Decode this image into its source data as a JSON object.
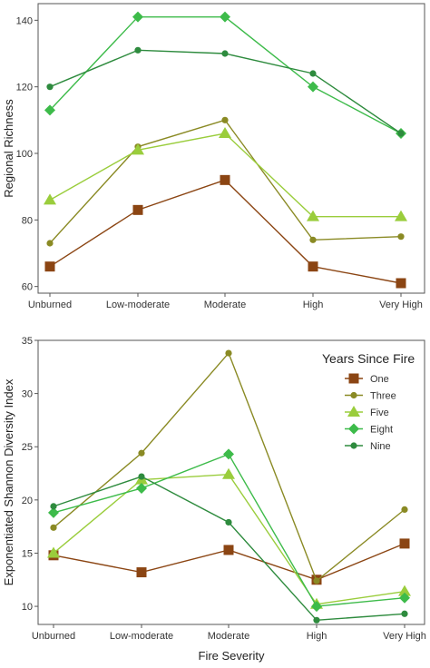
{
  "chart_data": [
    {
      "type": "line",
      "categories": [
        "Unburned",
        "Low-moderate",
        "Moderate",
        "High",
        "Very High"
      ],
      "ylabel": "Regional Richness",
      "xlabel": "",
      "ylim": [
        58,
        145
      ],
      "yticks": [
        60,
        80,
        100,
        120,
        140
      ],
      "grid": false,
      "series": [
        {
          "name": "One",
          "marker": "square",
          "color": "#8B4513",
          "values": [
            66,
            83,
            92,
            66,
            61
          ]
        },
        {
          "name": "Three",
          "marker": "circle",
          "color": "#8A8A24",
          "values": [
            73,
            102,
            110,
            74,
            75
          ]
        },
        {
          "name": "Five",
          "marker": "triangle",
          "color": "#9ACD3C",
          "values": [
            86,
            101,
            106,
            81,
            81
          ]
        },
        {
          "name": "Eight",
          "marker": "diamond",
          "color": "#3DBB4A",
          "values": [
            113,
            141,
            141,
            120,
            106
          ]
        },
        {
          "name": "Nine",
          "marker": "circle",
          "color": "#2E8B3E",
          "values": [
            120,
            131,
            130,
            124,
            106
          ]
        }
      ]
    },
    {
      "type": "line",
      "categories": [
        "Unburned",
        "Low-moderate",
        "Moderate",
        "High",
        "Very High"
      ],
      "ylabel": "Exponentiated Shannon Diversity Index",
      "xlabel": "Fire Severity",
      "ylim": [
        8.3,
        35
      ],
      "yticks": [
        10,
        15,
        20,
        25,
        30,
        35
      ],
      "grid": false,
      "legend": {
        "title": "Years Since Fire",
        "position": "top-right"
      },
      "series": [
        {
          "name": "One",
          "marker": "square",
          "color": "#8B4513",
          "values": [
            14.8,
            13.2,
            15.3,
            12.5,
            15.9
          ]
        },
        {
          "name": "Three",
          "marker": "circle",
          "color": "#8A8A24",
          "values": [
            17.4,
            24.4,
            33.8,
            12.4,
            19.1
          ]
        },
        {
          "name": "Five",
          "marker": "triangle",
          "color": "#9ACD3C",
          "values": [
            15.0,
            21.9,
            22.4,
            10.2,
            11.4
          ]
        },
        {
          "name": "Eight",
          "marker": "diamond",
          "color": "#3DBB4A",
          "values": [
            18.8,
            21.1,
            24.3,
            10.0,
            10.8
          ]
        },
        {
          "name": "Nine",
          "marker": "circle",
          "color": "#2E8B3E",
          "values": [
            19.4,
            22.2,
            17.9,
            8.7,
            9.3
          ]
        }
      ]
    }
  ]
}
